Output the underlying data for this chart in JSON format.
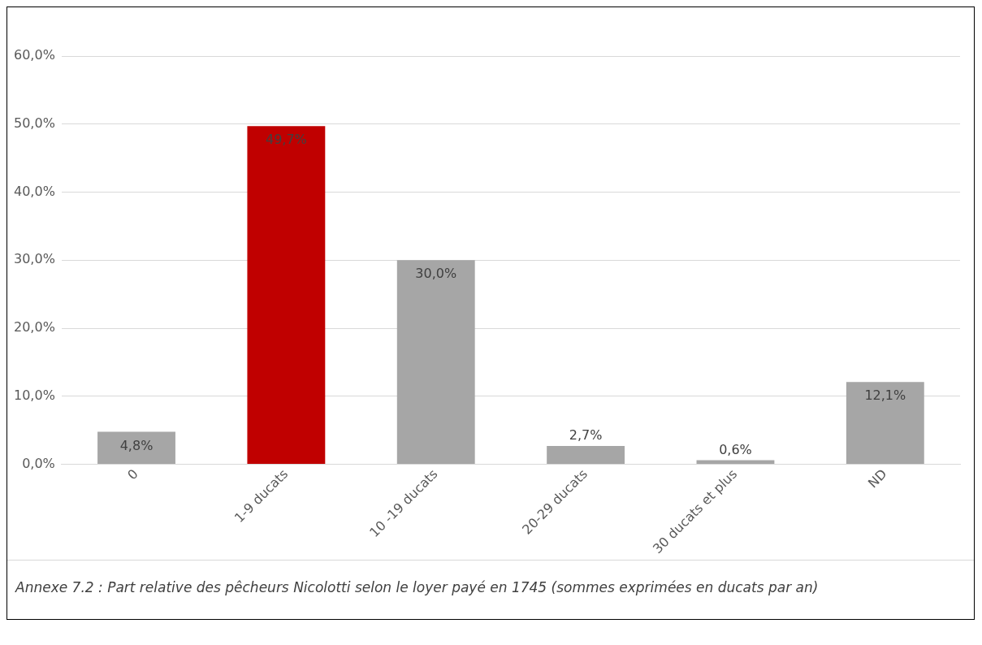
{
  "chart_data": {
    "type": "bar",
    "categories": [
      "0",
      "1-9 ducats",
      "10 -19 ducats",
      "20-29 ducats",
      "30 ducats et plus",
      "ND"
    ],
    "values": [
      4.8,
      49.7,
      30.0,
      2.7,
      0.6,
      12.1
    ],
    "colors": [
      "#a6a6a6",
      "#c00000",
      "#a6a6a6",
      "#a6a6a6",
      "#a6a6a6",
      "#a6a6a6"
    ],
    "value_labels": [
      "4,8%",
      "49,7%",
      "30,0%",
      "2,7%",
      "0,6%",
      "12,1%"
    ],
    "ylim": [
      0,
      60
    ],
    "yticks": [
      {
        "value": 0,
        "label": "0,0%"
      },
      {
        "value": 10,
        "label": "10,0%"
      },
      {
        "value": 20,
        "label": "20,0%"
      },
      {
        "value": 30,
        "label": "30,0%"
      },
      {
        "value": 40,
        "label": "40,0%"
      },
      {
        "value": 50,
        "label": "50,0%"
      },
      {
        "value": 60,
        "label": "60,0%"
      }
    ],
    "grid": "y",
    "legend": false,
    "annotations": [
      "Annexe 7.2 : Part relative des pêcheurs Nicolotti selon le loyer payé en 1745 (sommes exprimées en ducats par an)"
    ]
  }
}
